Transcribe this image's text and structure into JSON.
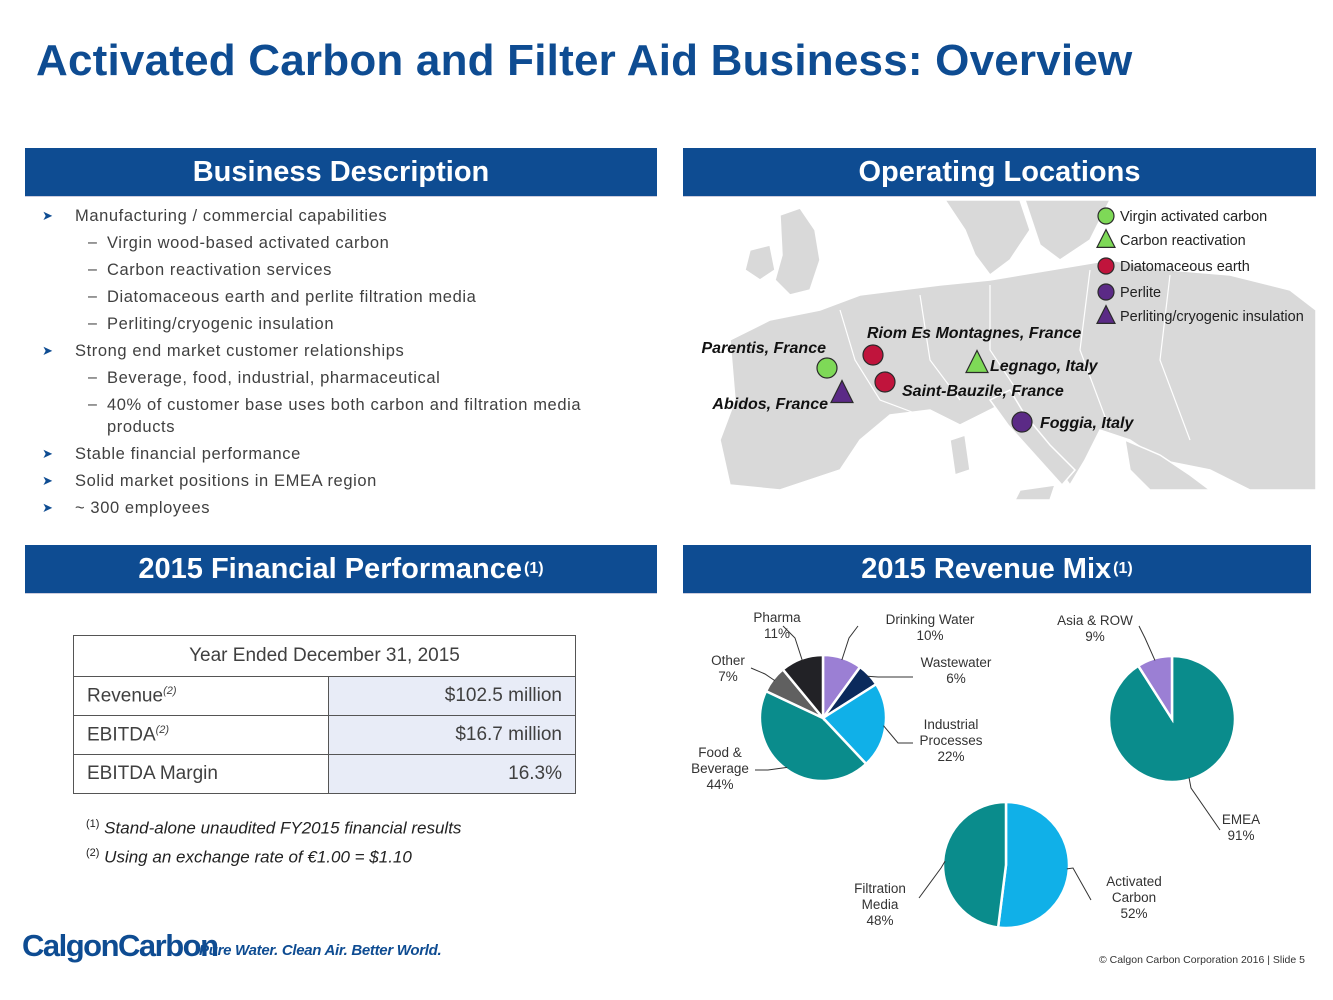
{
  "title": "Activated Carbon and Filter Aid Business: Overview",
  "sections": {
    "description": "Business Description",
    "locations": "Operating Locations",
    "financial": "2015 Financial Performance",
    "financial_sup": "(1)",
    "revenue_mix": "2015 Revenue Mix",
    "revenue_mix_sup": "(1)"
  },
  "description": [
    {
      "level": 1,
      "text": "Manufacturing / commercial capabilities"
    },
    {
      "level": 2,
      "text": "Virgin wood-based activated carbon"
    },
    {
      "level": 2,
      "text": "Carbon reactivation services"
    },
    {
      "level": 2,
      "text": "Diatomaceous earth and perlite filtration media"
    },
    {
      "level": 2,
      "text": "Perliting/cryogenic insulation"
    },
    {
      "level": 1,
      "text": "Strong end market customer relationships"
    },
    {
      "level": 2,
      "text": "Beverage, food, industrial, pharmaceutical"
    },
    {
      "level": 2,
      "text": "40% of customer base uses both carbon and filtration media products"
    },
    {
      "level": 1,
      "text": "Stable financial performance"
    },
    {
      "level": 1,
      "text": "Solid market positions in EMEA region"
    },
    {
      "level": 1,
      "text": "~ 300 employees"
    }
  ],
  "locations": [
    {
      "label": "Parentis, France",
      "type": "Virgin activated carbon"
    },
    {
      "label": "Abidos, France",
      "type": "Perliting/cryogenic insulation"
    },
    {
      "label": "Riom Es Montagnes, France",
      "type": "Diatomaceous earth"
    },
    {
      "label": "Saint-Bauzile, France",
      "type": "Diatomaceous earth"
    },
    {
      "label": "Legnago, Italy",
      "type": "Carbon reactivation"
    },
    {
      "label": "Foggia, Italy",
      "type": "Perlite"
    }
  ],
  "legend": [
    {
      "label": "Virgin activated carbon",
      "shape": "circle",
      "color": "#7ed957"
    },
    {
      "label": "Carbon reactivation",
      "shape": "triangle",
      "color": "#7ed957"
    },
    {
      "label": "Diatomaceous earth",
      "shape": "circle",
      "color": "#c0143c"
    },
    {
      "label": "Perlite",
      "shape": "circle",
      "color": "#5b2a86"
    },
    {
      "label": "Perliting/cryogenic insulation",
      "shape": "triangle",
      "color": "#5b2a86"
    }
  ],
  "financial_table": {
    "header": "Year Ended December 31, 2015",
    "rows": [
      {
        "label": "Revenue",
        "sup": "(2)",
        "value": "$102.5 million"
      },
      {
        "label": "EBITDA",
        "sup": "(2)",
        "value": "$16.7 million"
      },
      {
        "label": "EBITDA Margin",
        "sup": "",
        "value": "16.3%"
      }
    ]
  },
  "notes": [
    {
      "sup": "(1)",
      "text": "Stand-alone unaudited FY2015 financial results"
    },
    {
      "sup": "(2)",
      "text": "Using an exchange rate of €1.00 = $1.10"
    }
  ],
  "chart_data": [
    {
      "type": "pie",
      "title": "",
      "categories": [
        "Drinking Water",
        "Wastewater",
        "Industrial Processes",
        "Food & Beverage",
        "Other",
        "Pharma"
      ],
      "values": [
        10,
        6,
        22,
        44,
        7,
        11
      ],
      "labels": [
        "10%",
        "6%",
        "22%",
        "44%",
        "7%",
        "11%"
      ],
      "colors": [
        "#9b7fd4",
        "#0b2a5c",
        "#10b0e8",
        "#0a8c8c",
        "#606060",
        "#222226"
      ]
    },
    {
      "type": "pie",
      "title": "",
      "categories": [
        "EMEA",
        "Asia & ROW"
      ],
      "values": [
        91,
        9
      ],
      "labels": [
        "91%",
        "9%"
      ],
      "colors": [
        "#0a8c8c",
        "#9b7fd4"
      ]
    },
    {
      "type": "pie",
      "title": "",
      "categories": [
        "Activated Carbon",
        "Filtration Media"
      ],
      "values": [
        52,
        48
      ],
      "labels": [
        "52%",
        "48%"
      ],
      "colors": [
        "#10b0e8",
        "#0a8c8c"
      ]
    }
  ],
  "footer": {
    "logo": "CalgonCarbon",
    "tagline": "Pure Water. Clean Air. Better World.",
    "copyright": "© Calgon Carbon Corporation 2016 | Slide 5"
  }
}
